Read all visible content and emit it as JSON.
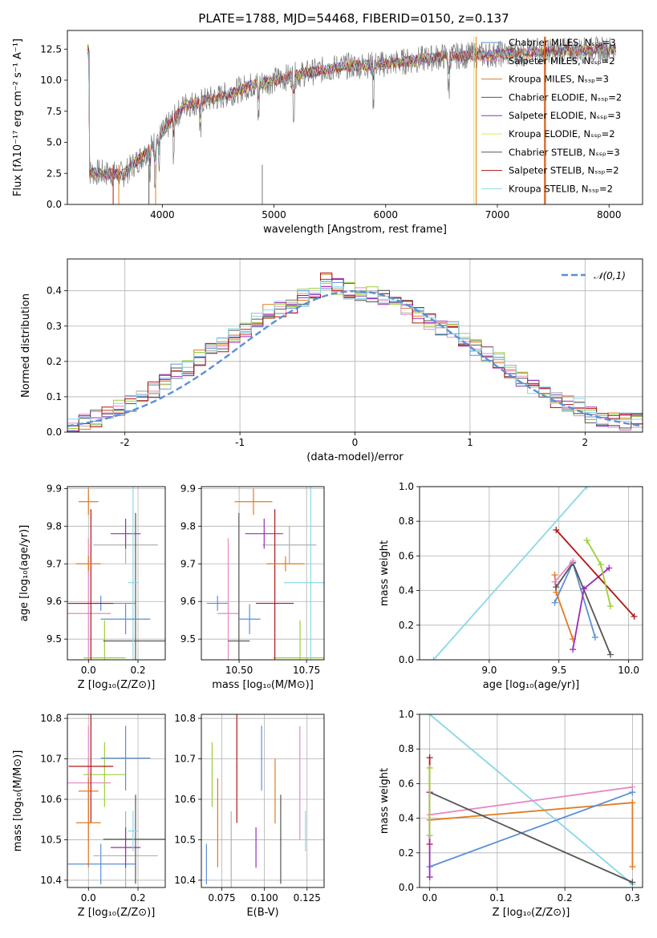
{
  "figure_title": "PLATE=1788, MJD=54468, FIBERID=0150, z=0.137",
  "colors": [
    "#5b8fd6",
    "#e07b22",
    "#b0b0b0",
    "#e58ac6",
    "#9c2bb6",
    "#9ccf3a",
    "#555555",
    "#b01717",
    "#88d8e6"
  ],
  "chart_data": [
    {
      "id": "spectrum",
      "type": "line",
      "xlabel": "wavelength [Angstrom, rest frame]",
      "ylabel": "Flux [fλ10⁻¹⁷ erg cm⁻² s⁻¹ A⁻¹]",
      "xlim": [
        3150,
        8300
      ],
      "ylim": [
        0,
        14
      ],
      "xticks": [
        4000,
        5000,
        6000,
        7000,
        8000
      ],
      "yticks": [
        0.0,
        2.5,
        5.0,
        7.5,
        10.0,
        12.5
      ],
      "data_trend": {
        "x": [
          3350,
          3650,
          3900,
          4200,
          4500,
          4800,
          5200,
          5600,
          6000,
          6500,
          7000,
          7500,
          8050
        ],
        "y": [
          2.6,
          2.4,
          4.6,
          8.0,
          8.6,
          9.6,
          10.4,
          11.1,
          11.3,
          11.9,
          12.1,
          12.3,
          12.5
        ]
      },
      "legend": [
        "Chabrier MILES, Nₛₛₚ=3",
        "Salpeter MILES, Nₛₛₚ=2",
        "Kroupa MILES, Nₛₛₚ=3",
        "Chabrier ELODIE, Nₛₛₚ=2",
        "Salpeter ELODIE, Nₛₛₚ=3",
        "Kroupa ELODIE, Nₛₛₚ=2",
        "Chabrier STELIB, Nₛₛₚ=3",
        "Salpeter STELIB, Nₛₛₚ=2",
        "Kroupa STELIB, Nₛₛₚ=2"
      ],
      "legend_colors": [
        "#5b8fd6",
        "#e58ac6",
        "#e07b22",
        "#555555",
        "#9c2bb6",
        "#e8e83a",
        "#555555",
        "#b01717",
        "#88d8e6"
      ],
      "legend_placement": "upper-right"
    },
    {
      "id": "residual-histogram",
      "type": "histogram",
      "xlabel": "(data-model)/error",
      "ylabel": "Normed distribution",
      "xlim": [
        -2.5,
        2.5
      ],
      "ylim": [
        0,
        0.49
      ],
      "xticks": [
        -2,
        -1,
        0,
        1,
        2
      ],
      "yticks": [
        0.0,
        0.1,
        0.2,
        0.3,
        0.4
      ],
      "grid": true,
      "bin_edges": [
        -2.5,
        -2.4,
        -2.3,
        -2.2,
        -2.1,
        -2.0,
        -1.9,
        -1.8,
        -1.7,
        -1.6,
        -1.5,
        -1.4,
        -1.3,
        -1.2,
        -1.1,
        -1.0,
        -0.9,
        -0.8,
        -0.7,
        -0.6,
        -0.5,
        -0.4,
        -0.3,
        -0.2,
        -0.1,
        0.0,
        0.1,
        0.2,
        0.3,
        0.4,
        0.5,
        0.6,
        0.7,
        0.8,
        0.9,
        1.0,
        1.1,
        1.2,
        1.3,
        1.4,
        1.5,
        1.6,
        1.7,
        1.8,
        1.9,
        2.0,
        2.1,
        2.2,
        2.3,
        2.4,
        2.5
      ],
      "counts": [
        0.02,
        0.03,
        0.04,
        0.05,
        0.07,
        0.08,
        0.1,
        0.12,
        0.14,
        0.17,
        0.18,
        0.21,
        0.24,
        0.25,
        0.27,
        0.29,
        0.32,
        0.34,
        0.35,
        0.36,
        0.38,
        0.4,
        0.43,
        0.41,
        0.4,
        0.39,
        0.39,
        0.38,
        0.37,
        0.35,
        0.33,
        0.31,
        0.3,
        0.29,
        0.26,
        0.24,
        0.22,
        0.2,
        0.17,
        0.15,
        0.13,
        0.11,
        0.09,
        0.08,
        0.07,
        0.05,
        0.04,
        0.03,
        0.03,
        0.03
      ],
      "legend": [
        "𝒩(0,1)"
      ],
      "legend_placement": "upper-right"
    },
    {
      "id": "age-vs-metallicity",
      "type": "errorbar",
      "xlabel": "Z [log₁₀(Z/Z⊙)]",
      "ylabel": "age  [log₁₀(age/yr)]",
      "xlim": [
        -0.085,
        0.31
      ],
      "ylim": [
        9.445,
        9.905
      ],
      "xticks": [
        0.0,
        0.2
      ],
      "yticks": [
        9.5,
        9.6,
        9.7,
        9.8,
        9.9
      ],
      "points": [
        {
          "x": 0.05,
          "xerr": 0.14,
          "y": 9.595,
          "yerr": 0.02
        },
        {
          "x": 0.0,
          "xerr": 0.04,
          "y": 9.865,
          "yerr": 0.035
        },
        {
          "x": 0.15,
          "xerr": 0.13,
          "y": 9.75,
          "yerr": 0.05
        },
        {
          "x": 0.0,
          "xerr": 0.09,
          "y": 9.568,
          "yerr": 0.2
        },
        {
          "x": 0.15,
          "xerr": 0.06,
          "y": 9.78,
          "yerr": 0.04
        },
        {
          "x": 0.065,
          "xerr": 0.085,
          "y": 9.45,
          "yerr": 0.1
        },
        {
          "x": 0.19,
          "xerr": 0.13,
          "y": 9.495,
          "yerr": 0.34
        },
        {
          "x": 0.01,
          "xerr": 0.09,
          "y": 9.595,
          "yerr": 0.25
        },
        {
          "x": 0.18,
          "xerr": 0.02,
          "y": 9.65,
          "yerr": 0.26
        },
        {
          "x": 0.15,
          "xerr": 0.1,
          "y": 9.553,
          "yerr": 0.04
        },
        {
          "x": 0.0,
          "xerr": 0.05,
          "y": 9.7,
          "yerr": 0.02
        }
      ]
    },
    {
      "id": "age-vs-mass",
      "type": "errorbar",
      "xlabel": "mass [log₁₀(M/M⊙)]",
      "ylabel": "",
      "xlim": [
        10.36,
        10.815
      ],
      "ylim": [
        9.445,
        9.905
      ],
      "xticks": [
        10.5,
        10.75
      ],
      "yticks": [
        9.5,
        9.6,
        9.7,
        9.8,
        9.9
      ]
    },
    {
      "id": "weight-vs-age",
      "type": "line",
      "xlabel": "age  [log₁₀(age/yr)]",
      "ylabel": "mass weight",
      "xlim": [
        8.5,
        10.1
      ],
      "ylim": [
        0.0,
        1.0
      ],
      "xticks": [
        9.0,
        9.5,
        10.0
      ],
      "yticks": [
        0.0,
        0.2,
        0.4,
        0.6,
        0.8,
        1.0
      ],
      "series": [
        {
          "color": "#88d8e6",
          "x": [
            8.6,
            9.7
          ],
          "y": [
            0.0,
            1.0
          ]
        },
        {
          "color": "#5b8fd6",
          "x": [
            9.47,
            9.6,
            9.76
          ],
          "y": [
            0.33,
            0.56,
            0.13
          ]
        },
        {
          "color": "#e07b22",
          "x": [
            9.47,
            9.48,
            9.6
          ],
          "y": [
            0.49,
            0.39,
            0.12
          ]
        },
        {
          "color": "#555555",
          "x": [
            9.48,
            9.6,
            9.87
          ],
          "y": [
            0.42,
            0.56,
            0.03
          ]
        },
        {
          "color": "#9c2bb6",
          "x": [
            9.6,
            9.68,
            9.86
          ],
          "y": [
            0.06,
            0.41,
            0.53
          ]
        },
        {
          "color": "#b01717",
          "x": [
            9.48,
            10.04
          ],
          "y": [
            0.75,
            0.25
          ]
        },
        {
          "color": "#9ccf3a",
          "x": [
            9.7,
            9.8,
            9.87
          ],
          "y": [
            0.69,
            0.55,
            0.31
          ]
        },
        {
          "color": "#e58ac6",
          "x": [
            9.47,
            9.6
          ],
          "y": [
            0.45,
            0.57
          ]
        }
      ]
    },
    {
      "id": "mass-vs-metallicity",
      "type": "errorbar",
      "xlabel": "Z [log₁₀(Z/Z⊙)]",
      "ylabel": "mass [log₁₀(M/M⊙)]",
      "xlim": [
        -0.085,
        0.31
      ],
      "ylim": [
        10.382,
        10.81
      ],
      "xticks": [
        0.0,
        0.2
      ],
      "yticks": [
        10.4,
        10.5,
        10.6,
        10.7,
        10.8
      ]
    },
    {
      "id": "mass-vs-extinction",
      "type": "errorbar",
      "xlabel": "E(B-V)",
      "ylabel": "",
      "xlim": [
        0.063,
        0.135
      ],
      "ylim": [
        10.382,
        10.81
      ],
      "xticks": [
        0.075,
        0.1,
        0.125
      ],
      "yticks": [
        10.4,
        10.5,
        10.6,
        10.7,
        10.8
      ]
    },
    {
      "id": "weight-vs-metallicity",
      "type": "line",
      "xlabel": "Z [log₁₀(Z/Z⊙)]",
      "ylabel": "mass weight",
      "xlim": [
        -0.015,
        0.315
      ],
      "ylim": [
        0.0,
        1.0
      ],
      "xticks": [
        0.0,
        0.1,
        0.2,
        0.3
      ],
      "yticks": [
        0.0,
        0.2,
        0.4,
        0.6,
        0.8,
        1.0
      ],
      "series": [
        {
          "color": "#88d8e6",
          "x": [
            0.0,
            0.3
          ],
          "y": [
            1.0,
            0.02
          ]
        },
        {
          "color": "#e58ac6",
          "x": [
            0.0,
            0.3
          ],
          "y": [
            0.42,
            0.58
          ]
        },
        {
          "color": "#e07b22",
          "x": [
            0.0,
            0.3
          ],
          "y": [
            0.39,
            0.49
          ]
        },
        {
          "color": "#5b8fd6",
          "x": [
            0.0,
            0.3
          ],
          "y": [
            0.12,
            0.55
          ]
        },
        {
          "color": "#555555",
          "x": [
            0.0,
            0.3
          ],
          "y": [
            0.55,
            0.03
          ]
        },
        {
          "color": "#e07b22",
          "x": [
            0.3,
            0.3
          ],
          "y": [
            0.49,
            0.12
          ]
        },
        {
          "color": "#b01717",
          "x": [
            0.0,
            0.0
          ],
          "y": [
            0.75,
            0.25
          ]
        },
        {
          "color": "#9c2bb6",
          "x": [
            0.0,
            0.0
          ],
          "y": [
            0.06,
            0.55
          ]
        },
        {
          "color": "#9ccf3a",
          "x": [
            0.0,
            0.0
          ],
          "y": [
            0.69,
            0.3
          ]
        }
      ]
    }
  ]
}
